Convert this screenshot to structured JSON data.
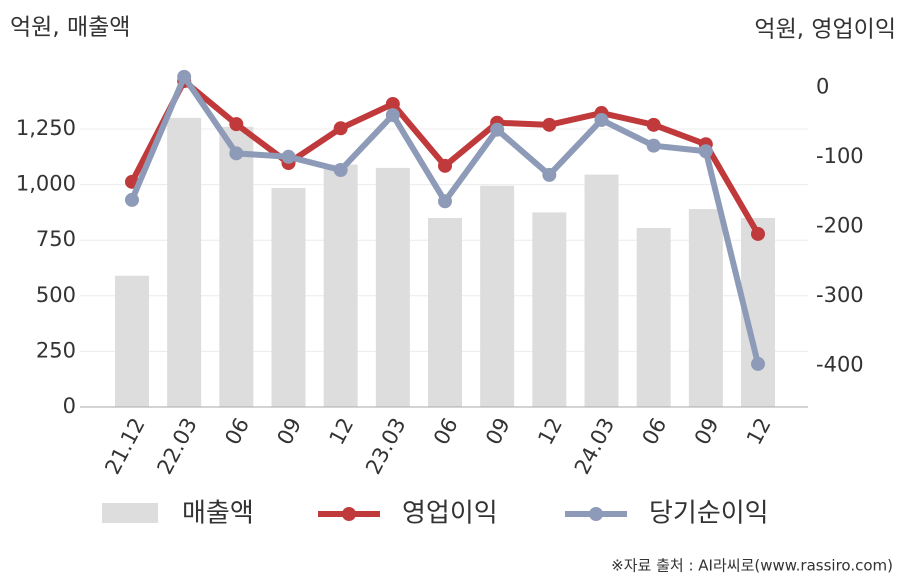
{
  "chart_data": {
    "type": "combo",
    "y_label": "억원, 매출액",
    "y2_label": "억원, 영업이익",
    "source": "※자료 출처 : AI라씨로(www.rassiro.com)",
    "categories": [
      "21.12",
      "22.03",
      "06",
      "09",
      "12",
      "23.03",
      "06",
      "09",
      "12",
      "24.03",
      "06",
      "09",
      "12"
    ],
    "series": [
      {
        "name": "매출액",
        "type": "bar",
        "color": "#dddddd",
        "values": [
          590,
          1300,
          1260,
          985,
          1090,
          1075,
          850,
          995,
          875,
          1045,
          805,
          890,
          850
        ]
      },
      {
        "name": "영업이익",
        "type": "line",
        "axis": "y2",
        "color": "#c0393b",
        "values": [
          -136,
          9,
          -53,
          -109,
          -59,
          -24,
          -113,
          -51,
          -54,
          -37,
          -54,
          -82,
          -211
        ]
      },
      {
        "name": "당기순이익",
        "type": "line",
        "axis": "y2",
        "color": "#8e9bb8",
        "values": [
          -162,
          15,
          -95,
          -100,
          -119,
          -40,
          -164,
          -61,
          -126,
          -47,
          -84,
          -92,
          -398
        ]
      }
    ],
    "ylim": [
      0,
      1500
    ],
    "yticks": [
      0,
      250,
      500,
      750,
      {
        "value": 1000,
        "label": "1,000"
      },
      {
        "value": 1250,
        "label": "1,250"
      }
    ],
    "y2lim": [
      -460,
      20
    ],
    "y2ticks": [
      0,
      -100,
      -200,
      -300,
      -400
    ],
    "grid": true
  }
}
